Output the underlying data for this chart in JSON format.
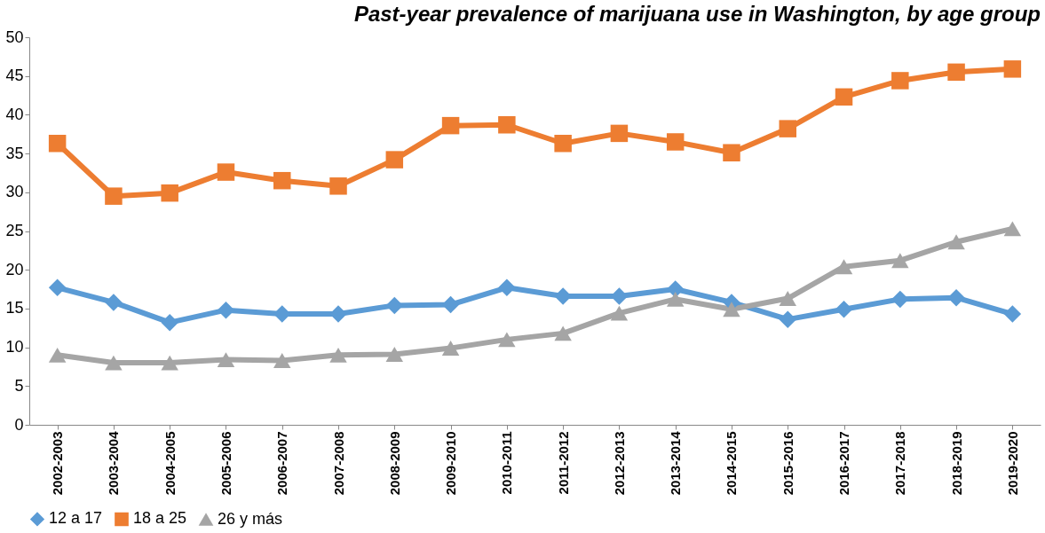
{
  "chart_data": {
    "type": "line",
    "title": "Past-year prevalence of marijuana use in Washington, by age group",
    "categories": [
      "2002-2003",
      "2003-2004",
      "2004-2005",
      "2005-2006",
      "2006-2007",
      "2007-2008",
      "2008-2009",
      "2009-2010",
      "2010-2011",
      "2011-2012",
      "2012-2013",
      "2013-2014",
      "2014-2015",
      "2015-2016",
      "2016-2017",
      "2017-2018",
      "2018-2019",
      "2019-2020"
    ],
    "series": [
      {
        "name": "12 a 17",
        "color": "#5b9bd5",
        "marker": "diamond",
        "values": [
          17.7,
          15.8,
          13.2,
          14.8,
          14.3,
          14.3,
          15.4,
          15.5,
          17.7,
          16.6,
          16.6,
          17.5,
          15.8,
          13.6,
          14.9,
          16.2,
          16.4,
          14.3
        ]
      },
      {
        "name": "18 a 25",
        "color": "#ed7d31",
        "marker": "square",
        "values": [
          36.3,
          29.5,
          29.9,
          32.6,
          31.5,
          30.8,
          34.2,
          38.6,
          38.7,
          36.3,
          37.6,
          36.5,
          35.1,
          38.2,
          42.3,
          44.4,
          45.5,
          45.9
        ]
      },
      {
        "name": "26 y más",
        "color": "#a5a5a5",
        "marker": "triangle",
        "values": [
          9.0,
          8.0,
          8.0,
          8.4,
          8.3,
          9.0,
          9.1,
          9.9,
          11.0,
          11.8,
          14.4,
          16.2,
          14.9,
          16.3,
          20.4,
          21.2,
          23.6,
          25.3
        ]
      }
    ],
    "ylim": [
      0,
      50
    ],
    "yticks": [
      0,
      5,
      10,
      15,
      20,
      25,
      30,
      35,
      40,
      45,
      50
    ],
    "grid": false,
    "legend": "bottom",
    "line_style": "solid"
  }
}
